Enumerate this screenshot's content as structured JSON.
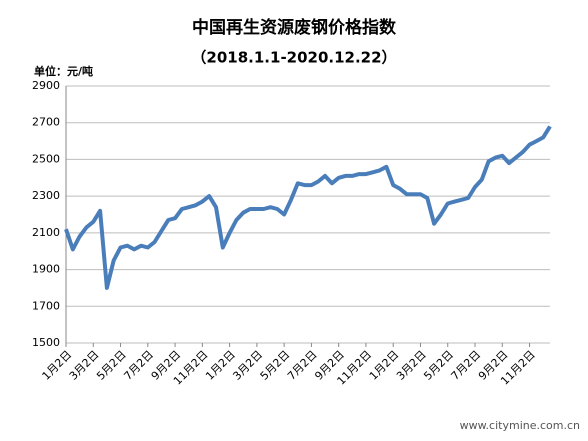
{
  "chart_data": {
    "type": "line",
    "title": "中国再生资源废钢价格指数",
    "subtitle": "（2018.1.1-2020.12.22）",
    "y_unit": "单位：元/吨",
    "watermark": "www.citymine.com.cn",
    "categories": [
      "1月2日",
      null,
      null,
      null,
      "3月2日",
      null,
      null,
      null,
      "5月2日",
      null,
      null,
      null,
      "7月2日",
      null,
      null,
      null,
      "9月2日",
      null,
      null,
      null,
      "11月2日",
      null,
      null,
      null,
      "1月2日",
      null,
      null,
      null,
      "3月2日",
      null,
      null,
      null,
      "5月2日",
      null,
      null,
      null,
      "7月2日",
      null,
      null,
      null,
      "9月2日",
      null,
      null,
      null,
      "11月2日",
      null,
      null,
      null,
      "1月2日",
      null,
      null,
      null,
      "3月2日",
      null,
      null,
      null,
      "5月2日",
      null,
      null,
      null,
      "7月2日",
      null,
      null,
      null,
      "9月2日",
      null,
      null,
      null,
      "11月2日",
      null,
      null,
      null
    ],
    "series": [
      {
        "color": "#4a7ebb",
        "values": [
          2120,
          2010,
          2080,
          2130,
          2160,
          2220,
          1800,
          1950,
          2020,
          2030,
          2010,
          2030,
          2020,
          2050,
          2110,
          2170,
          2180,
          2230,
          2240,
          2250,
          2270,
          2300,
          2240,
          2020,
          2100,
          2170,
          2210,
          2230,
          2230,
          2230,
          2240,
          2230,
          2200,
          2280,
          2370,
          2360,
          2360,
          2380,
          2410,
          2370,
          2400,
          2410,
          2410,
          2420,
          2420,
          2430,
          2440,
          2460,
          2360,
          2340,
          2310,
          2310,
          2310,
          2290,
          2150,
          2200,
          2260,
          2270,
          2280,
          2290,
          2350,
          2390,
          2490,
          2510,
          2520,
          2480,
          2510,
          2540,
          2580,
          2600,
          2620,
          2680
        ]
      }
    ],
    "ylim": [
      1500,
      2900
    ],
    "yticks": [
      1500,
      1700,
      1900,
      2100,
      2300,
      2500,
      2700,
      2900
    ],
    "grid": true
  }
}
